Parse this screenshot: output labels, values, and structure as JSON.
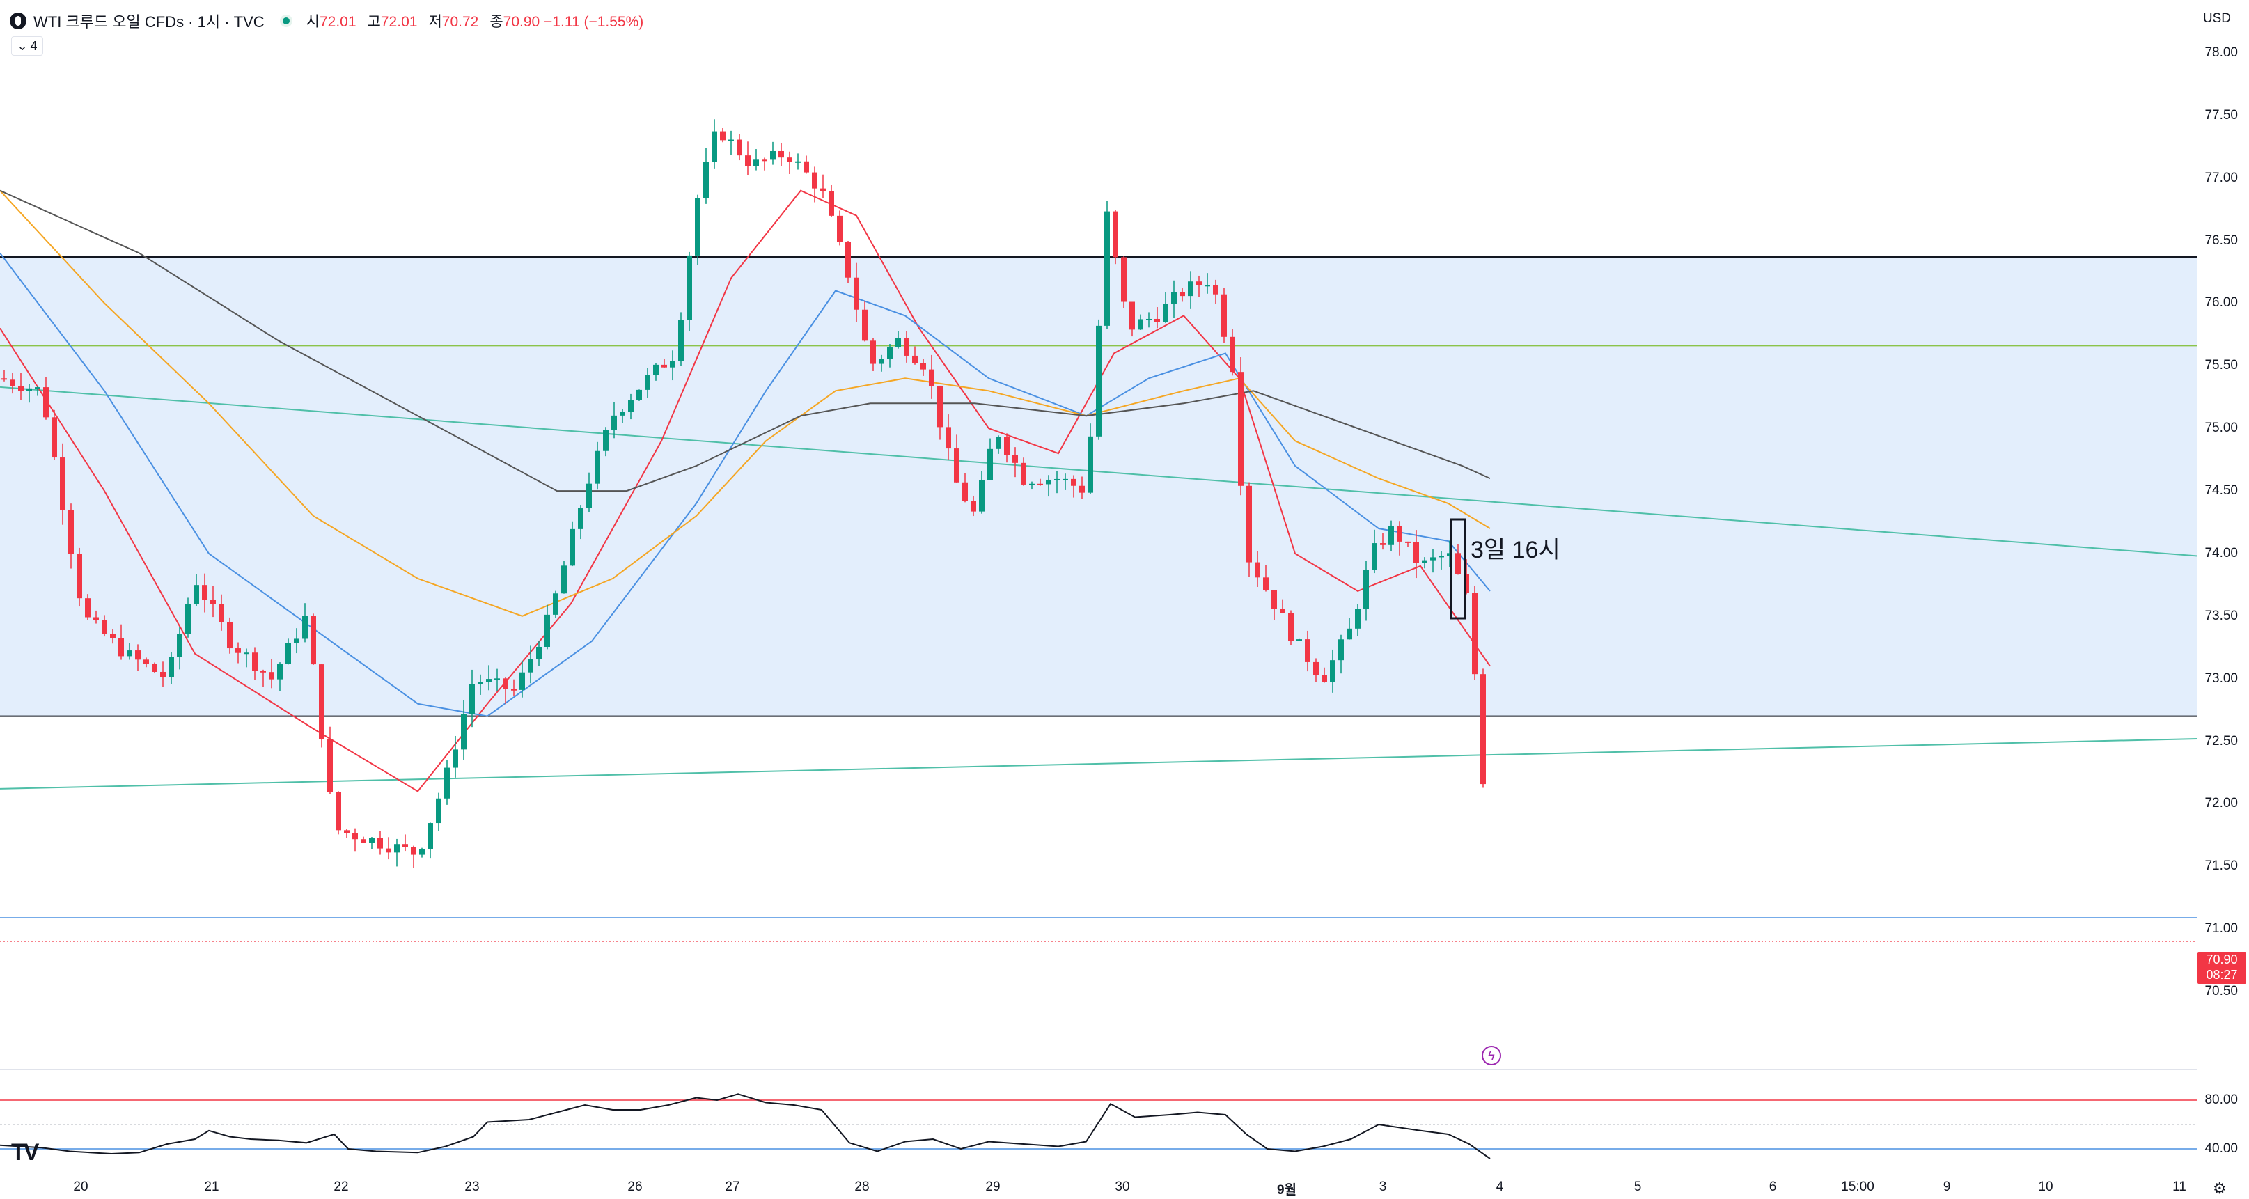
{
  "header": {
    "symbol": "WTI 크루드 오일 CFDs · 1시 · TVC",
    "ohlc": [
      {
        "label": "시",
        "value": "72.01"
      },
      {
        "label": "고",
        "value": "72.01"
      },
      {
        "label": "저",
        "value": "70.72"
      },
      {
        "label": "종",
        "value": "70.90 −1.11 (−1.55%)"
      }
    ],
    "indicator_count": "4",
    "currency": "USD"
  },
  "price_tag": {
    "price": "70.90",
    "countdown": "08:27"
  },
  "annotation": "3일 16시",
  "colors": {
    "up": "#089981",
    "down": "#f23645",
    "zone_fill": "#e3eefc",
    "ema_red": "#f23645",
    "ema_blue": "#4a90e2",
    "ema_orange": "#f5a623",
    "ema_black": "#555555",
    "trend": "#4fbfa8"
  },
  "chart_data": {
    "type": "line",
    "price_axis_ticks": [
      "78.00",
      "77.50",
      "77.00",
      "76.50",
      "76.00",
      "75.50",
      "75.00",
      "74.50",
      "74.00",
      "73.50",
      "73.00",
      "72.50",
      "72.00",
      "71.50",
      "71.00",
      "70.50"
    ],
    "time_axis_ticks": [
      {
        "label": "20",
        "bold": false
      },
      {
        "label": "21",
        "bold": false
      },
      {
        "label": "22",
        "bold": false
      },
      {
        "label": "23",
        "bold": false
      },
      {
        "label": "26",
        "bold": false
      },
      {
        "label": "27",
        "bold": false
      },
      {
        "label": "28",
        "bold": false
      },
      {
        "label": "29",
        "bold": false
      },
      {
        "label": "30",
        "bold": false
      },
      {
        "label": "9월",
        "bold": true
      },
      {
        "label": "3",
        "bold": false
      },
      {
        "label": "4",
        "bold": false
      },
      {
        "label": "5",
        "bold": false
      },
      {
        "label": "6",
        "bold": false
      },
      {
        "label": "15:00",
        "bold": false
      },
      {
        "label": "9",
        "bold": false
      },
      {
        "label": "10",
        "bold": false
      },
      {
        "label": "11",
        "bold": false
      }
    ],
    "ylim": [
      70.2,
      78.2
    ],
    "zone": {
      "top": 76.37,
      "bottom": 72.7
    },
    "hlines": [
      75.66,
      71.09,
      70.9
    ],
    "trendlines": [
      {
        "from": [
          0,
          75.33
        ],
        "to": [
          3156,
          73.98
        ]
      },
      {
        "from": [
          0,
          72.12
        ],
        "to": [
          3156,
          72.52
        ]
      }
    ],
    "close_path": [
      [
        0,
        75.4
      ],
      [
        60,
        75.3
      ],
      [
        120,
        73.5
      ],
      [
        180,
        73.2
      ],
      [
        240,
        73.0
      ],
      [
        280,
        73.8
      ],
      [
        330,
        73.3
      ],
      [
        390,
        73.0
      ],
      [
        440,
        73.5
      ],
      [
        480,
        71.8
      ],
      [
        540,
        71.7
      ],
      [
        600,
        71.6
      ],
      [
        640,
        72.2
      ],
      [
        680,
        73.0
      ],
      [
        740,
        72.9
      ],
      [
        790,
        73.5
      ],
      [
        840,
        74.5
      ],
      [
        880,
        75.1
      ],
      [
        930,
        75.4
      ],
      [
        970,
        75.6
      ],
      [
        1000,
        76.8
      ],
      [
        1030,
        77.4
      ],
      [
        1080,
        77.1
      ],
      [
        1130,
        77.2
      ],
      [
        1180,
        76.9
      ],
      [
        1220,
        76.2
      ],
      [
        1250,
        75.5
      ],
      [
        1290,
        75.7
      ],
      [
        1330,
        75.5
      ],
      [
        1370,
        74.6
      ],
      [
        1400,
        74.3
      ],
      [
        1430,
        75.0
      ],
      [
        1470,
        74.6
      ],
      [
        1520,
        74.6
      ],
      [
        1560,
        74.5
      ],
      [
        1590,
        76.7
      ],
      [
        1620,
        75.8
      ],
      [
        1660,
        75.9
      ],
      [
        1700,
        76.1
      ],
      [
        1740,
        76.2
      ],
      [
        1770,
        75.5
      ],
      [
        1790,
        74.0
      ],
      [
        1820,
        73.7
      ],
      [
        1860,
        73.3
      ],
      [
        1900,
        73.0
      ],
      [
        1940,
        73.4
      ],
      [
        1970,
        74.0
      ],
      [
        2000,
        74.2
      ],
      [
        2040,
        73.9
      ],
      [
        2080,
        74.0
      ],
      [
        2110,
        73.6
      ],
      [
        2130,
        72.2
      ],
      [
        2140,
        70.9
      ]
    ],
    "ema": [
      {
        "color": "#f23645",
        "points": [
          [
            0,
            75.8
          ],
          [
            150,
            74.5
          ],
          [
            280,
            73.2
          ],
          [
            450,
            72.6
          ],
          [
            600,
            72.1
          ],
          [
            700,
            72.8
          ],
          [
            820,
            73.6
          ],
          [
            950,
            74.9
          ],
          [
            1050,
            76.2
          ],
          [
            1150,
            76.9
          ],
          [
            1230,
            76.7
          ],
          [
            1320,
            75.8
          ],
          [
            1420,
            75.0
          ],
          [
            1520,
            74.8
          ],
          [
            1600,
            75.6
          ],
          [
            1700,
            75.9
          ],
          [
            1780,
            75.4
          ],
          [
            1860,
            74.0
          ],
          [
            1950,
            73.7
          ],
          [
            2040,
            73.9
          ],
          [
            2140,
            73.1
          ]
        ]
      },
      {
        "color": "#4a90e2",
        "points": [
          [
            0,
            76.4
          ],
          [
            150,
            75.3
          ],
          [
            300,
            74.0
          ],
          [
            450,
            73.4
          ],
          [
            600,
            72.8
          ],
          [
            700,
            72.7
          ],
          [
            850,
            73.3
          ],
          [
            1000,
            74.4
          ],
          [
            1100,
            75.3
          ],
          [
            1200,
            76.1
          ],
          [
            1300,
            75.9
          ],
          [
            1420,
            75.4
          ],
          [
            1560,
            75.1
          ],
          [
            1650,
            75.4
          ],
          [
            1760,
            75.6
          ],
          [
            1860,
            74.7
          ],
          [
            1980,
            74.2
          ],
          [
            2080,
            74.1
          ],
          [
            2140,
            73.7
          ]
        ]
      },
      {
        "color": "#f5a623",
        "points": [
          [
            0,
            76.9
          ],
          [
            150,
            76.0
          ],
          [
            300,
            75.2
          ],
          [
            450,
            74.3
          ],
          [
            600,
            73.8
          ],
          [
            750,
            73.5
          ],
          [
            880,
            73.8
          ],
          [
            1000,
            74.3
          ],
          [
            1100,
            74.9
          ],
          [
            1200,
            75.3
          ],
          [
            1300,
            75.4
          ],
          [
            1420,
            75.3
          ],
          [
            1560,
            75.1
          ],
          [
            1700,
            75.3
          ],
          [
            1780,
            75.4
          ],
          [
            1860,
            74.9
          ],
          [
            1980,
            74.6
          ],
          [
            2080,
            74.4
          ],
          [
            2140,
            74.2
          ]
        ]
      },
      {
        "color": "#555555",
        "points": [
          [
            0,
            76.9
          ],
          [
            200,
            76.4
          ],
          [
            400,
            75.7
          ],
          [
            600,
            75.1
          ],
          [
            800,
            74.5
          ],
          [
            900,
            74.5
          ],
          [
            1000,
            74.7
          ],
          [
            1150,
            75.1
          ],
          [
            1250,
            75.2
          ],
          [
            1400,
            75.2
          ],
          [
            1560,
            75.1
          ],
          [
            1700,
            75.2
          ],
          [
            1800,
            75.3
          ],
          [
            1900,
            75.1
          ],
          [
            2000,
            74.9
          ],
          [
            2100,
            74.7
          ],
          [
            2140,
            74.6
          ]
        ]
      }
    ],
    "oscillator": {
      "levels": [
        80,
        40
      ],
      "tick_labels": [
        "80.00",
        "40.00"
      ],
      "ylim": [
        20,
        100
      ],
      "points": [
        [
          0,
          43
        ],
        [
          60,
          41
        ],
        [
          100,
          38
        ],
        [
          160,
          36
        ],
        [
          200,
          37
        ],
        [
          240,
          44
        ],
        [
          280,
          48
        ],
        [
          300,
          55
        ],
        [
          330,
          50
        ],
        [
          360,
          48
        ],
        [
          400,
          47
        ],
        [
          440,
          45
        ],
        [
          480,
          52
        ],
        [
          500,
          40
        ],
        [
          540,
          38
        ],
        [
          600,
          37
        ],
        [
          640,
          42
        ],
        [
          680,
          50
        ],
        [
          700,
          62
        ],
        [
          760,
          64
        ],
        [
          800,
          70
        ],
        [
          840,
          76
        ],
        [
          880,
          72
        ],
        [
          920,
          72
        ],
        [
          960,
          76
        ],
        [
          1000,
          82
        ],
        [
          1030,
          80
        ],
        [
          1060,
          85
        ],
        [
          1100,
          78
        ],
        [
          1140,
          76
        ],
        [
          1180,
          72
        ],
        [
          1220,
          45
        ],
        [
          1260,
          38
        ],
        [
          1300,
          46
        ],
        [
          1340,
          48
        ],
        [
          1380,
          40
        ],
        [
          1420,
          46
        ],
        [
          1470,
          44
        ],
        [
          1520,
          42
        ],
        [
          1560,
          46
        ],
        [
          1595,
          77
        ],
        [
          1630,
          66
        ],
        [
          1680,
          68
        ],
        [
          1720,
          70
        ],
        [
          1760,
          68
        ],
        [
          1790,
          52
        ],
        [
          1820,
          40
        ],
        [
          1860,
          38
        ],
        [
          1900,
          42
        ],
        [
          1940,
          48
        ],
        [
          1980,
          60
        ],
        [
          2040,
          55
        ],
        [
          2080,
          52
        ],
        [
          2110,
          44
        ],
        [
          2140,
          32
        ]
      ]
    }
  }
}
